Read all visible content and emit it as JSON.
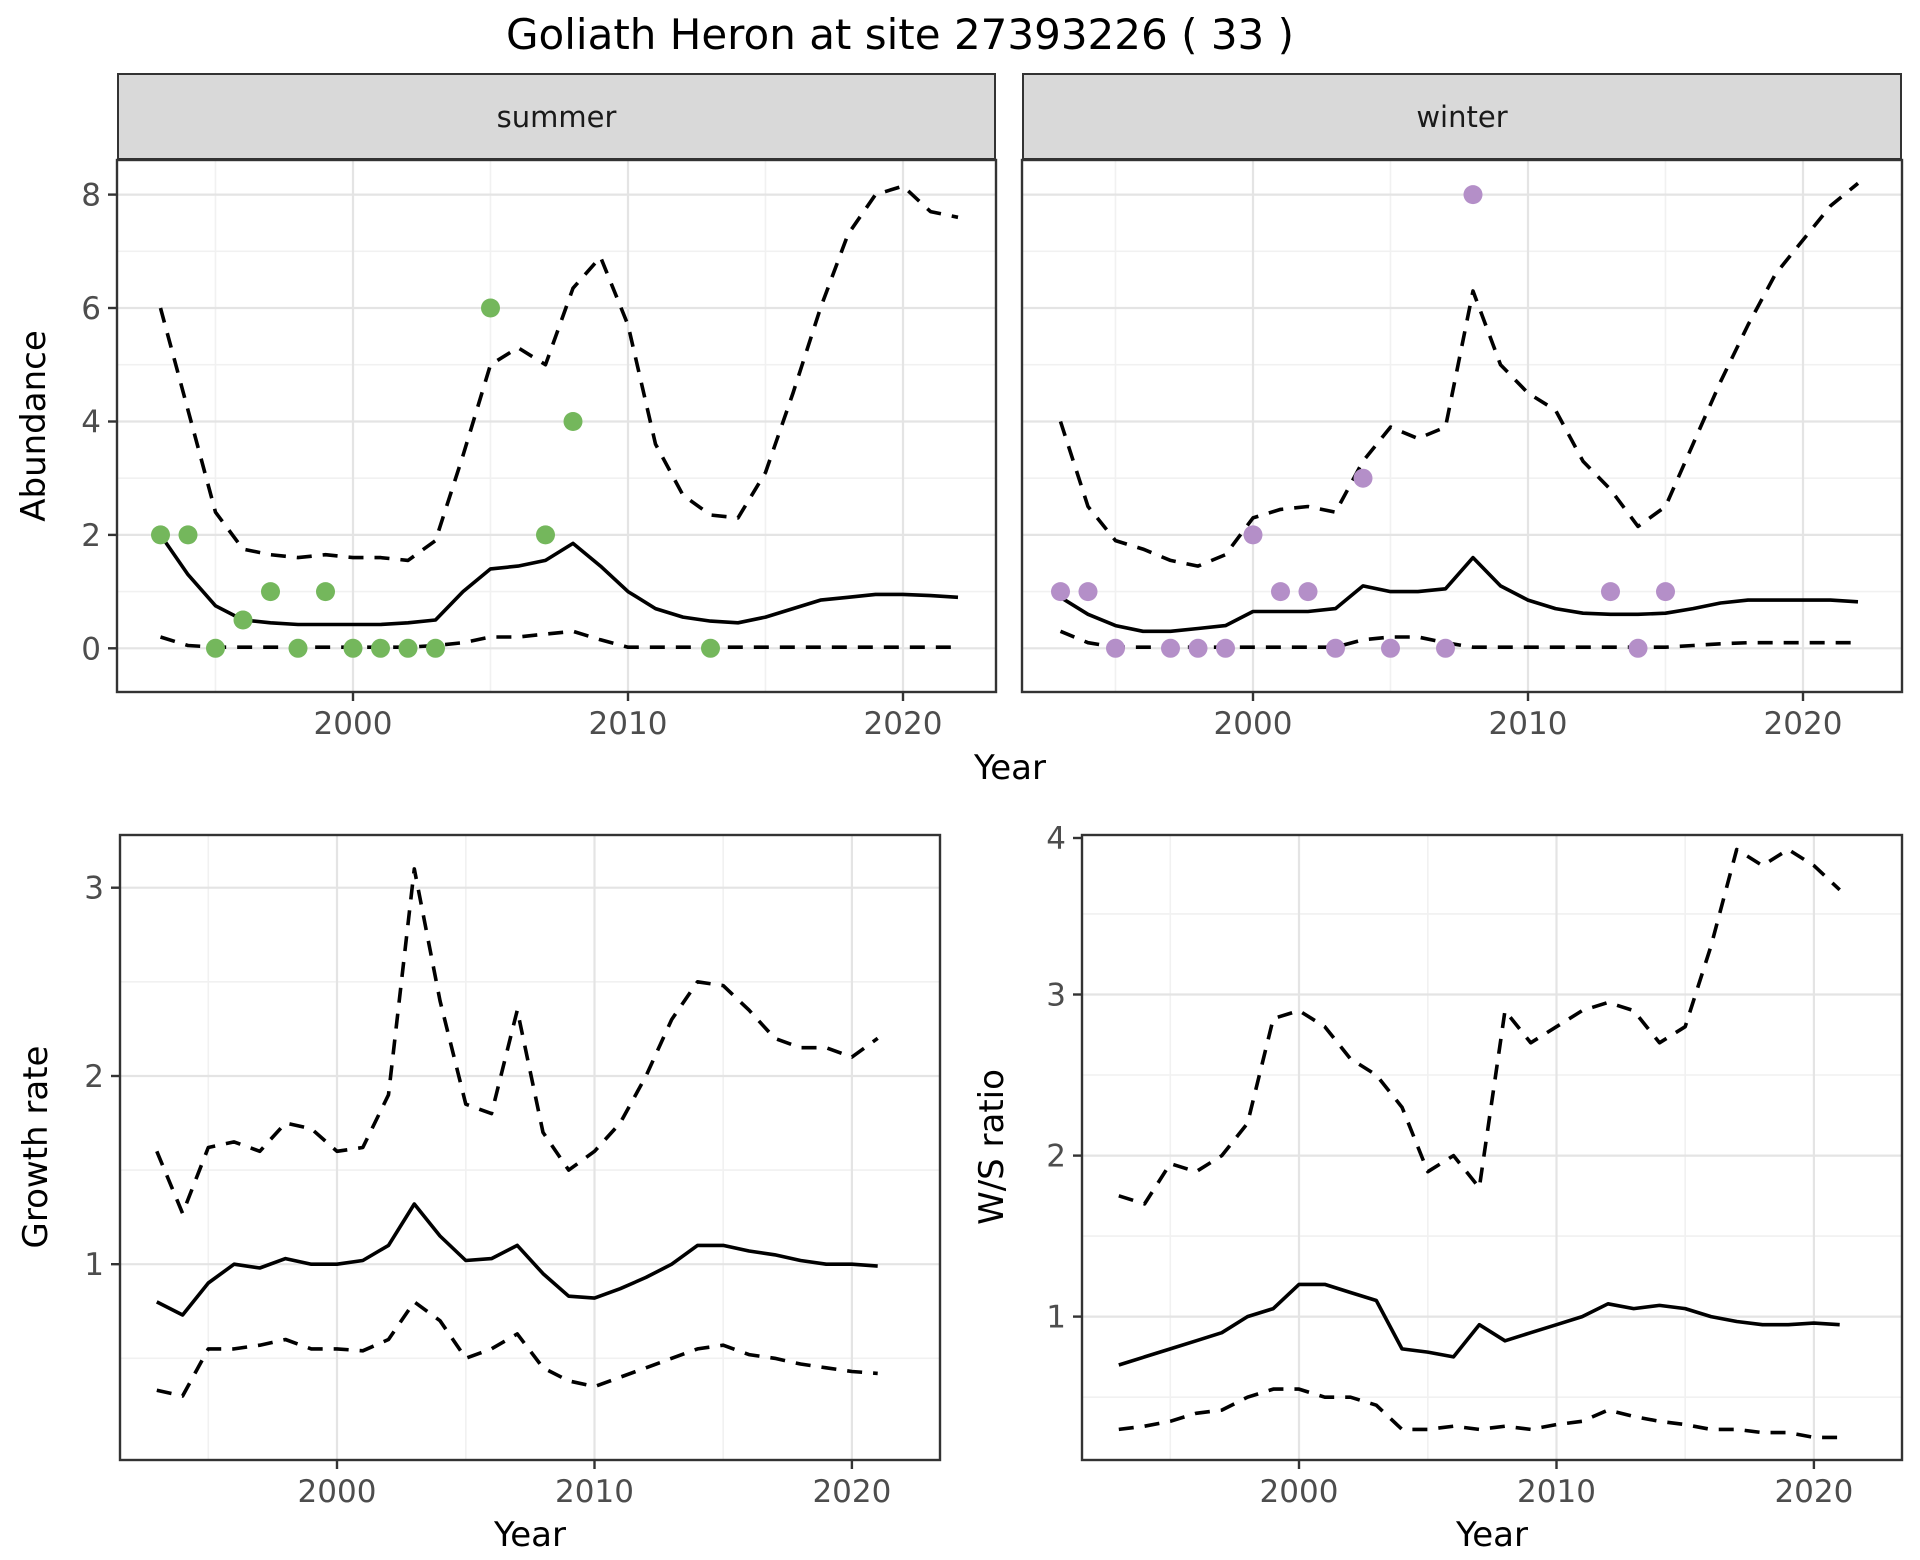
{
  "labels": {
    "title": "Goliath Heron at site 27393226 ( 33 )",
    "abundance_axis": "Abundance",
    "year_axis_top": "Year",
    "year_axis_bottom_left": "Year",
    "year_axis_bottom_right": "Year",
    "growth_axis": "Growth rate",
    "ws_axis": "W/S ratio"
  },
  "colors": {
    "summer_points": "#74b75c",
    "winter_points": "#b48fc8",
    "line": "#000000",
    "strip_bg": "#d9d9d9",
    "panel_border": "#333333",
    "tick_text": "#4d4d4d"
  },
  "chart_data": [
    {
      "id": "abundance-summer",
      "type": "line",
      "facet_label": "summer",
      "x_label": "Year",
      "y_label": "Abundance",
      "legend": "none",
      "grid": true,
      "xlim": [
        1991.42,
        2023.38
      ],
      "ylim": [
        -0.77,
        8.61
      ],
      "x_ticks": [
        2000,
        2010,
        2020
      ],
      "x_minor": [
        1995,
        2005,
        2015
      ],
      "y_ticks": [
        0,
        2,
        4,
        6,
        8
      ],
      "y_minor": [
        1,
        3,
        5,
        7
      ],
      "years": [
        1993,
        1994,
        1995,
        1996,
        1997,
        1998,
        1999,
        2000,
        2001,
        2002,
        2003,
        2004,
        2005,
        2006,
        2007,
        2008,
        2009,
        2010,
        2011,
        2012,
        2013,
        2014,
        2015,
        2016,
        2017,
        2018,
        2019,
        2020,
        2021,
        2022
      ],
      "series": [
        {
          "name": "median",
          "style": "solid",
          "values": [
            2.0,
            1.3,
            0.75,
            0.5,
            0.45,
            0.42,
            0.42,
            0.42,
            0.42,
            0.45,
            0.5,
            1.0,
            1.4,
            1.45,
            1.55,
            1.85,
            1.45,
            1.0,
            0.7,
            0.55,
            0.48,
            0.45,
            0.55,
            0.7,
            0.85,
            0.9,
            0.95,
            0.95,
            0.93,
            0.9
          ]
        },
        {
          "name": "upper_ci",
          "style": "dashed",
          "values": [
            6.0,
            4.2,
            2.4,
            1.75,
            1.65,
            1.6,
            1.65,
            1.6,
            1.6,
            1.55,
            1.9,
            3.4,
            5.0,
            5.3,
            5.0,
            6.35,
            6.9,
            5.7,
            3.6,
            2.7,
            2.35,
            2.3,
            3.1,
            4.5,
            6.0,
            7.3,
            8.0,
            8.15,
            7.7,
            7.6
          ]
        },
        {
          "name": "lower_ci",
          "style": "dashed",
          "values": [
            0.2,
            0.05,
            0.02,
            0.02,
            0.02,
            0.02,
            0.02,
            0.02,
            0.02,
            0.02,
            0.05,
            0.1,
            0.2,
            0.2,
            0.25,
            0.3,
            0.15,
            0.02,
            0.02,
            0.02,
            0.02,
            0.02,
            0.02,
            0.02,
            0.02,
            0.02,
            0.02,
            0.02,
            0.02,
            0.02
          ]
        }
      ],
      "points": {
        "color": "#74b75c",
        "x": [
          1993,
          1994,
          1995,
          1996,
          1997,
          1998,
          1999,
          2000,
          2001,
          2002,
          2003,
          2005,
          2007,
          2008,
          2013
        ],
        "y": [
          2,
          2,
          0,
          0.5,
          1,
          0,
          1,
          0,
          0,
          0,
          0,
          6,
          2,
          4,
          0
        ]
      }
    },
    {
      "id": "abundance-winter",
      "type": "line",
      "facet_label": "winter",
      "x_label": "Year",
      "y_label": "Abundance",
      "legend": "none",
      "grid": true,
      "xlim": [
        1991.6,
        2023.6
      ],
      "ylim": [
        -0.77,
        8.61
      ],
      "x_ticks": [
        2000,
        2010,
        2020
      ],
      "x_minor": [
        1995,
        2005,
        2015
      ],
      "y_ticks": [
        0,
        2,
        4,
        6,
        8
      ],
      "y_minor": [
        1,
        3,
        5,
        7
      ],
      "years": [
        1993,
        1994,
        1995,
        1996,
        1997,
        1998,
        1999,
        2000,
        2001,
        2002,
        2003,
        2004,
        2005,
        2006,
        2007,
        2008,
        2009,
        2010,
        2011,
        2012,
        2013,
        2014,
        2015,
        2016,
        2017,
        2018,
        2019,
        2020,
        2021,
        2022
      ],
      "series": [
        {
          "name": "median",
          "style": "solid",
          "values": [
            0.9,
            0.6,
            0.4,
            0.3,
            0.3,
            0.35,
            0.4,
            0.65,
            0.65,
            0.65,
            0.7,
            1.1,
            1.0,
            1.0,
            1.05,
            1.6,
            1.1,
            0.85,
            0.7,
            0.62,
            0.6,
            0.6,
            0.62,
            0.7,
            0.8,
            0.85,
            0.85,
            0.85,
            0.85,
            0.82
          ]
        },
        {
          "name": "upper_ci",
          "style": "dashed",
          "values": [
            4.0,
            2.5,
            1.9,
            1.75,
            1.55,
            1.45,
            1.65,
            2.3,
            2.45,
            2.5,
            2.4,
            3.3,
            3.9,
            3.7,
            3.9,
            6.3,
            5.0,
            4.5,
            4.2,
            3.3,
            2.8,
            2.15,
            2.5,
            3.6,
            4.7,
            5.7,
            6.6,
            7.2,
            7.8,
            8.2
          ]
        },
        {
          "name": "lower_ci",
          "style": "dashed",
          "values": [
            0.3,
            0.1,
            0.02,
            0.02,
            0.02,
            0.02,
            0.02,
            0.02,
            0.02,
            0.02,
            0.02,
            0.15,
            0.2,
            0.2,
            0.1,
            0.02,
            0.02,
            0.02,
            0.02,
            0.02,
            0.02,
            0.02,
            0.02,
            0.05,
            0.08,
            0.1,
            0.1,
            0.1,
            0.1,
            0.1
          ]
        }
      ],
      "points": {
        "color": "#b48fc8",
        "x": [
          1993,
          1994,
          1995,
          1997,
          1998,
          1999,
          2000,
          2001,
          2002,
          2003,
          2004,
          2005,
          2007,
          2008,
          2013,
          2014,
          2015
        ],
        "y": [
          1,
          1,
          0,
          0,
          0,
          0,
          2,
          1,
          1,
          0,
          3,
          0,
          0,
          8,
          1,
          0,
          1
        ]
      }
    },
    {
      "id": "growth-rate",
      "type": "line",
      "facet_label": "",
      "x_label": "Year",
      "y_label": "Growth rate",
      "legend": "none",
      "grid": true,
      "xlim": [
        1991.57,
        2023.42
      ],
      "ylim": [
        -0.04,
        3.28
      ],
      "x_ticks": [
        2000,
        2010,
        2020
      ],
      "x_minor": [
        1995,
        2005,
        2015
      ],
      "y_ticks": [
        1,
        2,
        3
      ],
      "y_minor": [
        0.5,
        1.5,
        2.5
      ],
      "years": [
        1993,
        1994,
        1995,
        1996,
        1997,
        1998,
        1999,
        2000,
        2001,
        2002,
        2003,
        2004,
        2005,
        2006,
        2007,
        2008,
        2009,
        2010,
        2011,
        2012,
        2013,
        2014,
        2015,
        2016,
        2017,
        2018,
        2019,
        2020,
        2021
      ],
      "series": [
        {
          "name": "median",
          "style": "solid",
          "values": [
            0.8,
            0.73,
            0.9,
            1.0,
            0.98,
            1.03,
            1.0,
            1.0,
            1.02,
            1.1,
            1.32,
            1.15,
            1.02,
            1.03,
            1.1,
            0.95,
            0.83,
            0.82,
            0.87,
            0.93,
            1.0,
            1.1,
            1.1,
            1.07,
            1.05,
            1.02,
            1.0,
            1.0,
            0.99
          ]
        },
        {
          "name": "upper_ci",
          "style": "dashed",
          "values": [
            1.6,
            1.27,
            1.62,
            1.65,
            1.6,
            1.75,
            1.72,
            1.6,
            1.62,
            1.9,
            3.1,
            2.4,
            1.85,
            1.8,
            2.35,
            1.7,
            1.5,
            1.6,
            1.75,
            2.0,
            2.3,
            2.5,
            2.48,
            2.35,
            2.2,
            2.15,
            2.15,
            2.1,
            2.2
          ]
        },
        {
          "name": "lower_ci",
          "style": "dashed",
          "values": [
            0.33,
            0.3,
            0.55,
            0.55,
            0.57,
            0.6,
            0.55,
            0.55,
            0.54,
            0.6,
            0.8,
            0.7,
            0.5,
            0.55,
            0.63,
            0.45,
            0.38,
            0.35,
            0.4,
            0.45,
            0.5,
            0.55,
            0.57,
            0.52,
            0.5,
            0.47,
            0.45,
            0.43,
            0.42
          ]
        }
      ],
      "points": null
    },
    {
      "id": "ws-ratio",
      "type": "line",
      "facet_label": "",
      "x_label": "Year",
      "y_label": "W/S ratio",
      "legend": "none",
      "grid": true,
      "xlim": [
        1991.57,
        2023.42
      ],
      "ylim": [
        0.11,
        3.99
      ],
      "x_ticks": [
        2000,
        2010,
        2020
      ],
      "x_minor": [
        1995,
        2005,
        2015
      ],
      "y_ticks": [
        1,
        2,
        3,
        4
      ],
      "y_minor": [
        0.5,
        1.5,
        2.5,
        3.5
      ],
      "years": [
        1993,
        1994,
        1995,
        1996,
        1997,
        1998,
        1999,
        2000,
        2001,
        2002,
        2003,
        2004,
        2005,
        2006,
        2007,
        2008,
        2009,
        2010,
        2011,
        2012,
        2013,
        2014,
        2015,
        2016,
        2017,
        2018,
        2019,
        2020,
        2021
      ],
      "series": [
        {
          "name": "median",
          "style": "solid",
          "values": [
            0.7,
            0.75,
            0.8,
            0.85,
            0.9,
            1.0,
            1.05,
            1.2,
            1.2,
            1.15,
            1.1,
            0.8,
            0.78,
            0.75,
            0.95,
            0.85,
            0.9,
            0.95,
            1.0,
            1.08,
            1.05,
            1.07,
            1.05,
            1.0,
            0.97,
            0.95,
            0.95,
            0.96,
            0.95
          ]
        },
        {
          "name": "upper_ci",
          "style": "dashed",
          "values": [
            1.75,
            1.7,
            1.95,
            1.9,
            2.0,
            2.2,
            2.85,
            2.9,
            2.8,
            2.6,
            2.5,
            2.3,
            1.9,
            2.0,
            1.8,
            2.9,
            2.7,
            2.8,
            2.9,
            2.95,
            2.9,
            2.7,
            2.8,
            3.3,
            3.9,
            3.8,
            3.9,
            3.8,
            3.65
          ]
        },
        {
          "name": "lower_ci",
          "style": "dashed",
          "values": [
            0.3,
            0.32,
            0.35,
            0.4,
            0.42,
            0.5,
            0.55,
            0.55,
            0.5,
            0.5,
            0.45,
            0.3,
            0.3,
            0.32,
            0.3,
            0.32,
            0.3,
            0.33,
            0.35,
            0.42,
            0.38,
            0.35,
            0.33,
            0.3,
            0.3,
            0.28,
            0.28,
            0.25,
            0.25
          ]
        }
      ],
      "points": null
    }
  ]
}
